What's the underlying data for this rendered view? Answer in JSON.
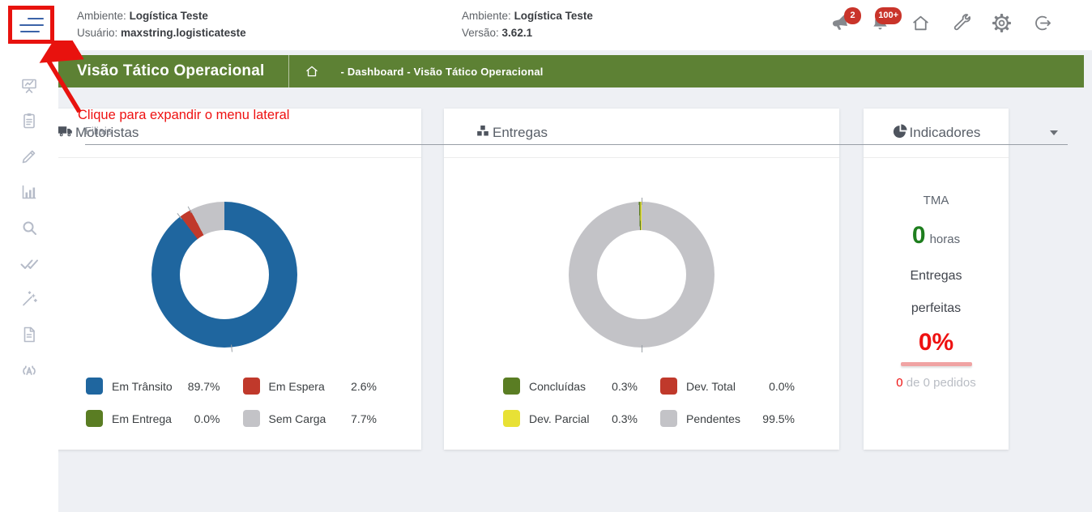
{
  "header": {
    "left": {
      "ambiente_label": "Ambiente:",
      "ambiente_value": "Logística Teste",
      "usuario_label": "Usuário:",
      "usuario_value": "maxstring.logisticateste"
    },
    "center": {
      "ambiente_label": "Ambiente:",
      "ambiente_value": "Logística Teste",
      "versao_label": "Versão:",
      "versao_value": "3.62.1"
    },
    "badges": {
      "announcements": "2",
      "notifications": "100+"
    },
    "icons": [
      "megaphone-icon",
      "bell-icon",
      "home-icon",
      "wrench-icon",
      "gear-icon",
      "logout-icon"
    ]
  },
  "sidebar": {
    "icons": [
      "presentation-chart-icon",
      "clipboard-icon",
      "pencil-icon",
      "bar-chart-icon",
      "search-icon",
      "double-check-icon",
      "magic-wand-icon",
      "document-icon",
      "antenna-icon"
    ]
  },
  "title_bar": {
    "title": "Visão Tático Operacional",
    "breadcrumb": "- Dashboard - Visão Tático Operacional"
  },
  "annotation": {
    "text": "Clique para expandir o menu lateral",
    "color": "#ee1111"
  },
  "filters": {
    "filiais_label": "Filiais"
  },
  "cards": {
    "indicadores": {
      "title": "Indicadores",
      "tma_label": "TMA",
      "tma_value": "0",
      "tma_unit": "horas",
      "perfeitas_line1": "Entregas",
      "perfeitas_line2": "perfeitas",
      "perfeitas_value": "0%",
      "pedidos_value": "0",
      "pedidos_text": " de 0 pedidos"
    }
  },
  "chart_data": [
    {
      "type": "pie",
      "title": "Motoristas",
      "donut": true,
      "legend_position": "bottom",
      "categories": [
        "Em Trânsito",
        "Em Espera",
        "Em Entrega",
        "Sem Carga"
      ],
      "values": [
        89.7,
        2.6,
        0.0,
        7.7
      ],
      "display_values": [
        "89.7%",
        "2.6%",
        "0.0%",
        "7.7%"
      ],
      "colors": [
        "#1f669f",
        "#c0392b",
        "#5a7d23",
        "#c3c3c7"
      ],
      "rotation_deg": 0,
      "tick_angles_deg": [
        322.9,
        332.3,
        174
      ]
    },
    {
      "type": "pie",
      "title": "Entregas",
      "donut": true,
      "legend_position": "bottom",
      "categories": [
        "Concluídas",
        "Dev. Total",
        "Dev. Parcial",
        "Pendentes"
      ],
      "values": [
        0.3,
        0.0,
        0.3,
        99.5
      ],
      "display_values": [
        "0.3%",
        "0.0%",
        "0.3%",
        "99.5%"
      ],
      "colors": [
        "#5a7d23",
        "#c0392b",
        "#e8e135",
        "#c3c3c7"
      ],
      "rotation_deg": -2.16,
      "tick_angles_deg": [
        0,
        180
      ]
    }
  ],
  "colors": {
    "accent_green": "#5d8134",
    "badge_red": "#c9342a",
    "annotation_red": "#ee1111",
    "tma_green": "#1e7e1e",
    "percent_red": "#ee1111",
    "page_bg": "#eef0f4"
  }
}
